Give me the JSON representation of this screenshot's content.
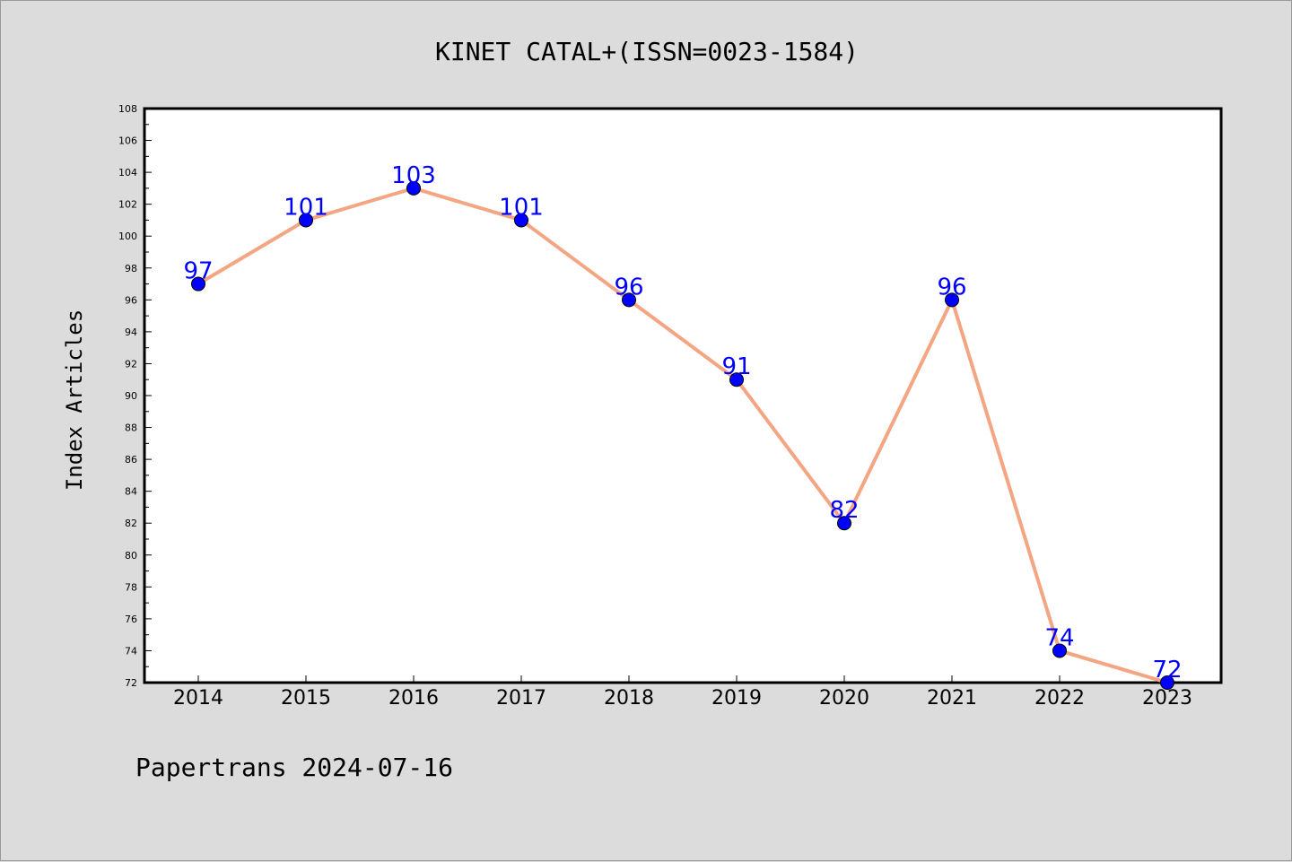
{
  "chart_data": {
    "type": "line",
    "title": "KINET CATAL+(ISSN=0023-1584)",
    "xlabel": "",
    "ylabel": "Index Articles",
    "categories": [
      "2014",
      "2015",
      "2016",
      "2017",
      "2018",
      "2019",
      "2020",
      "2021",
      "2022",
      "2023"
    ],
    "series": [
      {
        "values": [
          97,
          101,
          103,
          101,
          96,
          91,
          82,
          96,
          74,
          72
        ]
      }
    ],
    "ylim": [
      72,
      108
    ],
    "yticks": [
      "72",
      "74",
      "76",
      "78",
      "80",
      "82",
      "84",
      "86",
      "88",
      "90",
      "92",
      "94",
      "96",
      "98",
      "100",
      "102",
      "104",
      "106",
      "108"
    ],
    "data_labels": [
      "97",
      "101",
      "103",
      "101",
      "96",
      "91",
      "82",
      "96",
      "74",
      "72"
    ],
    "grid": false,
    "colors": {
      "line": "#f4a582",
      "marker": "#0000ff",
      "marker_edge": "#000000",
      "data_label": "#0000ff",
      "background": "#dcdcdc",
      "plot_background": "#ffffff"
    }
  },
  "footer": "Papertrans 2024-07-16"
}
